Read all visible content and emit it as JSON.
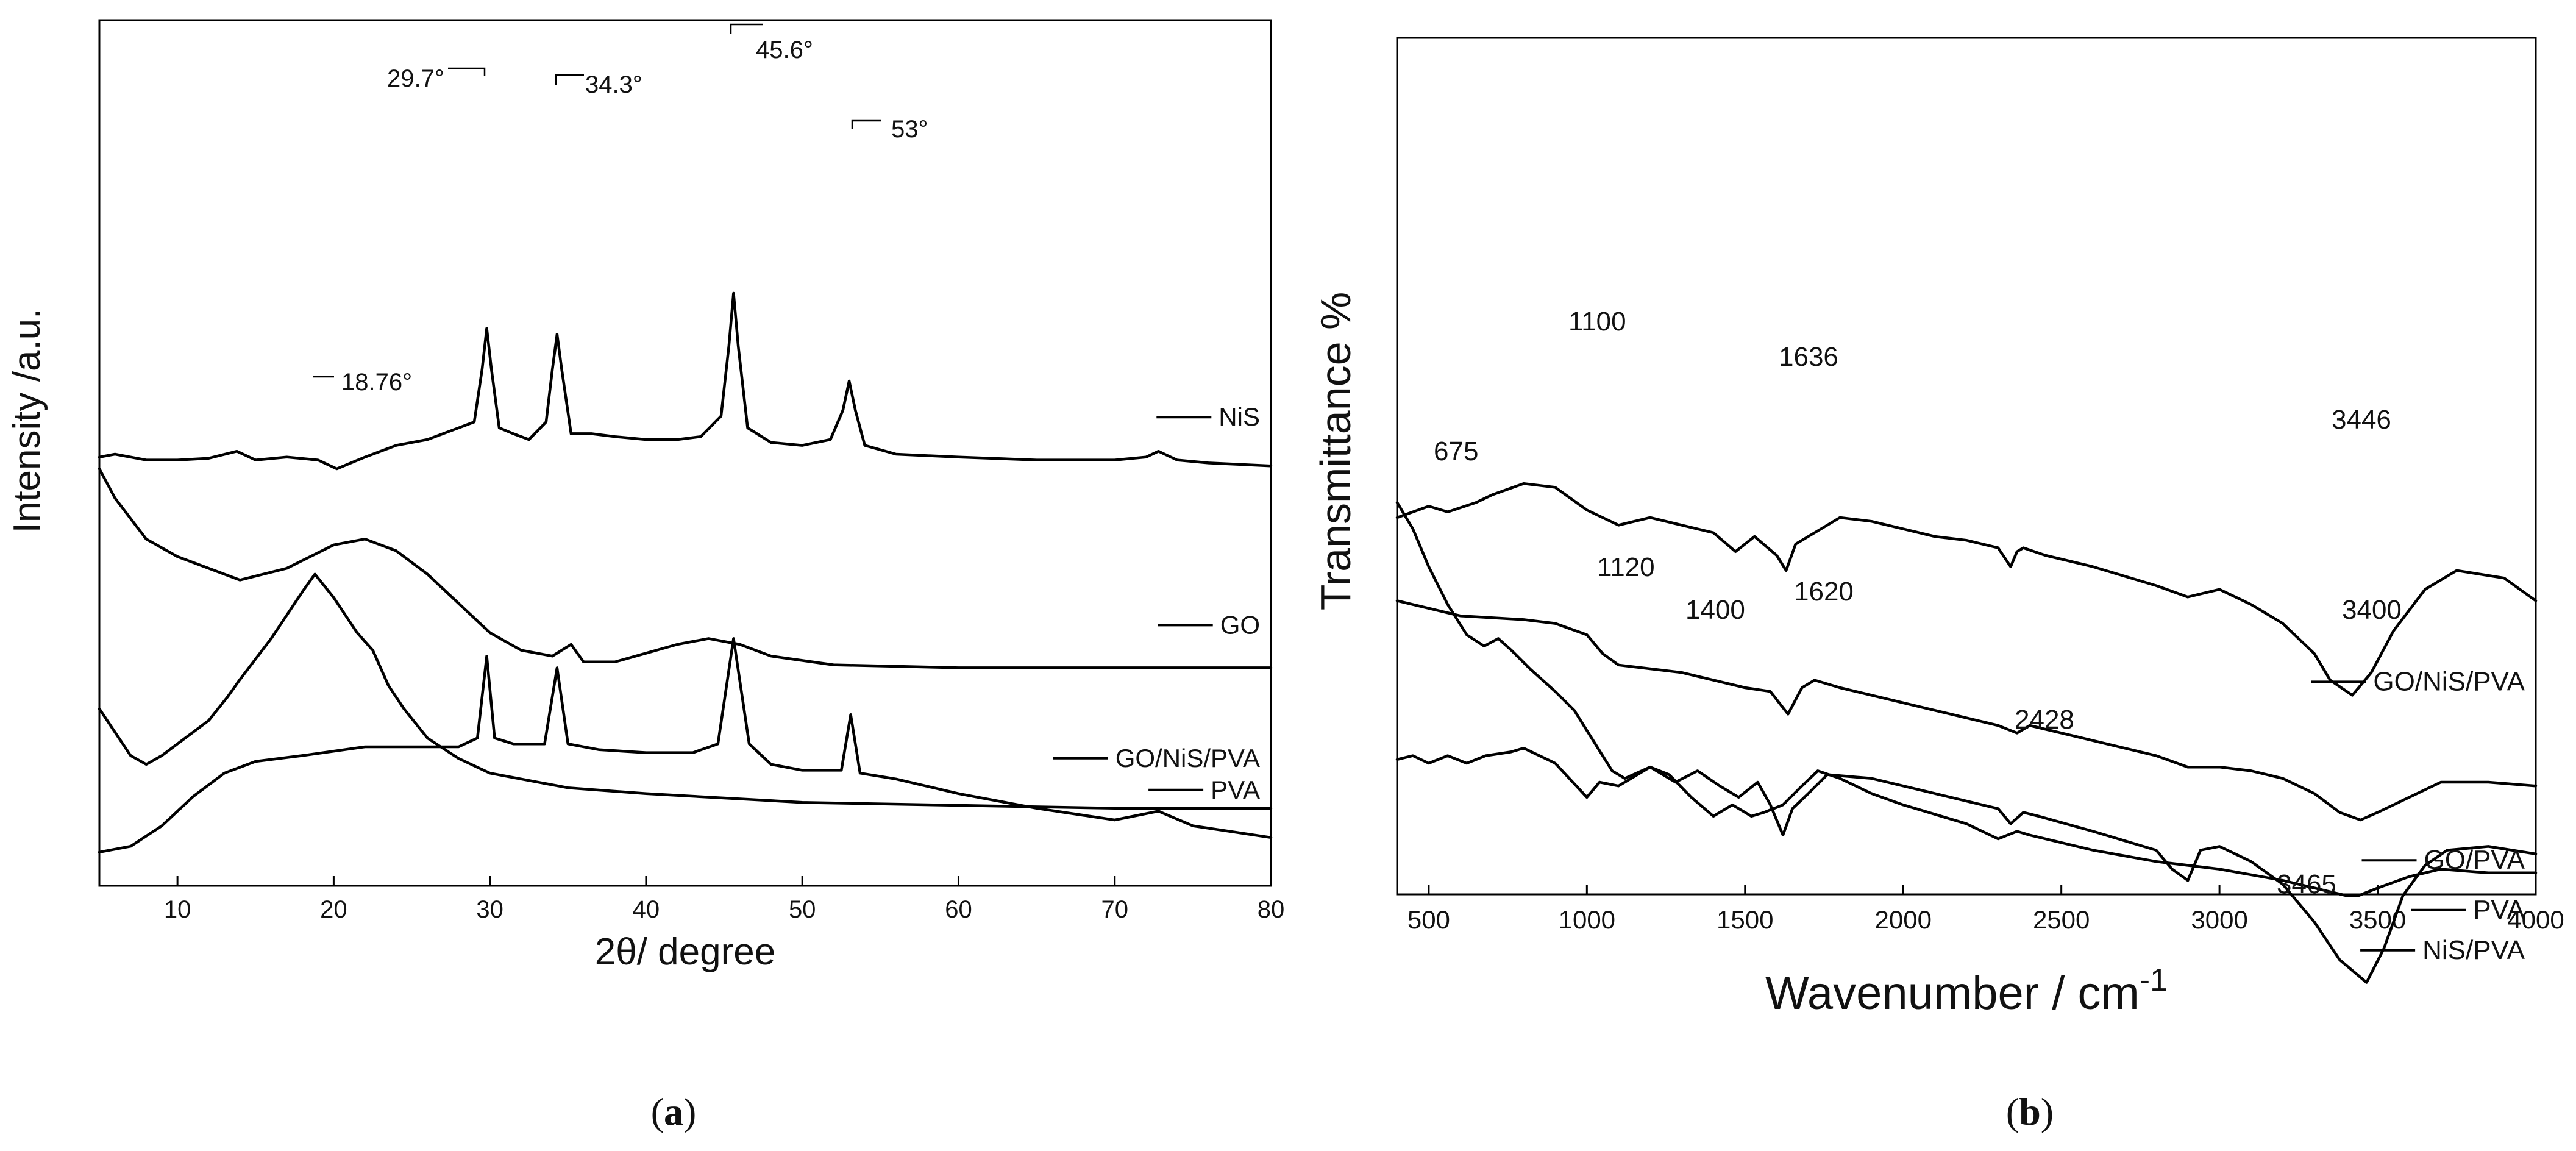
{
  "panels": {
    "a": {
      "caption_open": "(",
      "caption_letter": "a",
      "caption_close": ")"
    },
    "b": {
      "caption_open": "(",
      "caption_letter": "b",
      "caption_close": ")"
    }
  },
  "chart_data": [
    {
      "id": "a",
      "type": "line",
      "title": "",
      "xlabel": "2θ/ degree",
      "ylabel": "Intensity /a.u.",
      "xlim": [
        5,
        80
      ],
      "xticks": [
        10,
        20,
        30,
        40,
        50,
        60,
        70,
        80
      ],
      "yticks_labeled": false,
      "legend_position": "right, one label per trace",
      "series": [
        {
          "name": "NiS",
          "offset": 6.6,
          "x": [
            5,
            6,
            8,
            10,
            12,
            13.8,
            15,
            17,
            19,
            20.2,
            22,
            24,
            26,
            28,
            29,
            29.5,
            29.8,
            30.1,
            30.6,
            31.5,
            32.5,
            33.6,
            34,
            34.3,
            34.6,
            35.2,
            36.5,
            38,
            40,
            42,
            43.5,
            44.8,
            45.3,
            45.6,
            45.9,
            46.5,
            48,
            50,
            51.8,
            52.6,
            53,
            53.4,
            54,
            56,
            60,
            65,
            70,
            72,
            72.8,
            74,
            76,
            80
          ],
          "values": [
            0.1,
            0.15,
            0.05,
            0.05,
            0.08,
            0.2,
            0.05,
            0.1,
            0.05,
            -0.1,
            0.1,
            0.3,
            0.4,
            0.6,
            0.7,
            1.6,
            2.3,
            1.6,
            0.6,
            0.5,
            0.4,
            0.7,
            1.6,
            2.2,
            1.6,
            0.5,
            0.5,
            0.45,
            0.4,
            0.4,
            0.45,
            0.8,
            2.0,
            2.9,
            2.0,
            0.6,
            0.35,
            0.3,
            0.4,
            0.9,
            1.4,
            0.9,
            0.3,
            0.15,
            0.1,
            0.05,
            0.05,
            0.1,
            0.2,
            0.05,
            0.0,
            -0.05
          ]
        },
        {
          "name": "GO",
          "offset": 3.1,
          "x": [
            5,
            6,
            8,
            10,
            14,
            17,
            20,
            22,
            24,
            26,
            28,
            30,
            32,
            34,
            35.2,
            36,
            38,
            40,
            42,
            44,
            46,
            48,
            52,
            60,
            70,
            80
          ],
          "values": [
            3.4,
            2.9,
            2.2,
            1.9,
            1.5,
            1.7,
            2.1,
            2.2,
            2.0,
            1.6,
            1.1,
            0.6,
            0.3,
            0.2,
            0.4,
            0.1,
            0.1,
            0.25,
            0.4,
            0.5,
            0.4,
            0.2,
            0.05,
            0.0,
            0.0,
            0.0
          ]
        },
        {
          "name": "PVA",
          "offset": 0.7,
          "x": [
            5,
            6,
            7,
            8,
            9,
            10,
            12,
            13.2,
            14,
            16,
            18,
            18.8,
            20,
            21.5,
            22.5,
            23.5,
            24.5,
            26,
            28,
            30,
            35,
            40,
            50,
            60,
            70,
            80
          ],
          "values": [
            1.7,
            1.3,
            0.9,
            0.75,
            0.9,
            1.1,
            1.5,
            1.9,
            2.2,
            2.9,
            3.7,
            4.0,
            3.6,
            3.0,
            2.7,
            2.1,
            1.7,
            1.2,
            0.85,
            0.6,
            0.35,
            0.25,
            0.1,
            0.05,
            0.0,
            0.0
          ]
        },
        {
          "name": "GO/NiS/PVA",
          "offset": -0.1,
          "x": [
            5,
            7,
            9,
            11,
            13,
            15,
            18,
            22,
            26,
            28,
            29.2,
            29.8,
            30.3,
            31.5,
            33.5,
            34.3,
            35,
            37,
            40,
            43,
            44.6,
            45.6,
            46.6,
            48,
            50,
            52.5,
            53.1,
            53.7,
            56,
            60,
            65,
            70,
            72.8,
            75,
            80
          ],
          "values": [
            0.05,
            0.15,
            0.5,
            1.0,
            1.4,
            1.6,
            1.7,
            1.85,
            1.85,
            1.85,
            2.0,
            3.4,
            2.0,
            1.9,
            1.9,
            3.2,
            1.9,
            1.8,
            1.75,
            1.75,
            1.9,
            3.7,
            1.9,
            1.55,
            1.45,
            1.45,
            2.4,
            1.4,
            1.3,
            1.05,
            0.8,
            0.6,
            0.75,
            0.5,
            0.3
          ]
        }
      ],
      "annotations": [
        "29.7°",
        "34.3°",
        "45.6°",
        "53°",
        "18.76°"
      ]
    },
    {
      "id": "b",
      "type": "line",
      "title": "",
      "xlabel": "Wavenumber / cm",
      "xlabel_superscript": "-1",
      "ylabel": "Transmittance %",
      "xlim": [
        400,
        4000
      ],
      "xticks": [
        500,
        1000,
        1500,
        2000,
        2500,
        3000,
        3500,
        4000
      ],
      "yticks_labeled": false,
      "legend_position": "right, one label per trace",
      "series": [
        {
          "name": "GO/NiS/PVA",
          "offset": 9.0,
          "x": [
            400,
            500,
            560,
            650,
            700,
            800,
            900,
            1000,
            1100,
            1200,
            1300,
            1400,
            1470,
            1530,
            1600,
            1630,
            1660,
            1700,
            1800,
            1900,
            2000,
            2100,
            2200,
            2300,
            2340,
            2360,
            2380,
            2450,
            2600,
            2800,
            2900,
            3000,
            3100,
            3200,
            3300,
            3350,
            3420,
            3480,
            3550,
            3650,
            3750,
            3900,
            4000
          ],
          "values": [
            0.0,
            0.3,
            0.15,
            0.4,
            0.6,
            0.9,
            0.8,
            0.2,
            -0.2,
            0.0,
            -0.2,
            -0.4,
            -0.9,
            -0.5,
            -1.0,
            -1.4,
            -0.7,
            -0.5,
            0.0,
            -0.1,
            -0.3,
            -0.5,
            -0.6,
            -0.8,
            -1.3,
            -0.9,
            -0.8,
            -1.0,
            -1.3,
            -1.8,
            -2.1,
            -1.9,
            -2.3,
            -2.8,
            -3.6,
            -4.3,
            -4.7,
            -4.1,
            -3.0,
            -1.9,
            -1.4,
            -1.6,
            -2.2
          ]
        },
        {
          "name": "GO/PVA",
          "offset": 6.8,
          "x": [
            400,
            600,
            800,
            900,
            1000,
            1050,
            1100,
            1200,
            1300,
            1400,
            1500,
            1580,
            1636,
            1680,
            1720,
            1800,
            2000,
            2200,
            2300,
            2360,
            2400,
            2600,
            2800,
            2900,
            3000,
            3100,
            3200,
            3300,
            3380,
            3446,
            3500,
            3600,
            3700,
            3850,
            4000
          ],
          "values": [
            0.0,
            -0.4,
            -0.5,
            -0.6,
            -0.9,
            -1.4,
            -1.7,
            -1.8,
            -1.9,
            -2.1,
            -2.3,
            -2.4,
            -3.0,
            -2.3,
            -2.1,
            -2.3,
            -2.7,
            -3.1,
            -3.3,
            -3.5,
            -3.3,
            -3.7,
            -4.1,
            -4.4,
            -4.4,
            -4.5,
            -4.7,
            -5.1,
            -5.6,
            -5.8,
            -5.6,
            -5.2,
            -4.8,
            -4.8,
            -4.9
          ]
        },
        {
          "name": "NiS/PVA",
          "offset": 4.7,
          "x": [
            400,
            450,
            500,
            560,
            620,
            675,
            720,
            760,
            820,
            900,
            960,
            1020,
            1080,
            1120,
            1200,
            1260,
            1330,
            1400,
            1460,
            1520,
            1560,
            1620,
            1680,
            1730,
            1800,
            1900,
            2000,
            2200,
            2300,
            2360,
            2400,
            2600,
            2800,
            3000,
            3200,
            3300,
            3400,
            3440,
            3500,
            3600,
            3700,
            3850,
            4000
          ],
          "values": [
            4.7,
            4.0,
            3.0,
            2.0,
            1.2,
            0.9,
            1.1,
            0.8,
            0.3,
            -0.3,
            -0.8,
            -1.6,
            -2.4,
            -2.6,
            -2.3,
            -2.5,
            -3.1,
            -3.6,
            -3.3,
            -3.6,
            -3.5,
            -3.3,
            -2.8,
            -2.4,
            -2.6,
            -3.0,
            -3.3,
            -3.8,
            -4.2,
            -4.0,
            -4.1,
            -4.5,
            -4.8,
            -5.0,
            -5.3,
            -5.5,
            -5.7,
            -5.7,
            -5.5,
            -5.2,
            -5.0,
            -5.1,
            -5.1
          ]
        },
        {
          "name": "PVA",
          "offset": 2.6,
          "x": [
            400,
            450,
            500,
            560,
            620,
            680,
            760,
            800,
            900,
            1000,
            1040,
            1100,
            1200,
            1280,
            1350,
            1420,
            1480,
            1540,
            1580,
            1620,
            1650,
            1700,
            1760,
            1900,
            2100,
            2300,
            2340,
            2380,
            2428,
            2600,
            2800,
            2850,
            2900,
            2940,
            3000,
            3100,
            3200,
            3300,
            3380,
            3465,
            3520,
            3580,
            3650,
            3720,
            3850,
            4000
          ],
          "values": [
            0.0,
            0.1,
            -0.1,
            0.1,
            -0.1,
            0.1,
            0.2,
            0.3,
            -0.1,
            -1.0,
            -0.6,
            -0.7,
            -0.2,
            -0.6,
            -0.3,
            -0.7,
            -1.0,
            -0.6,
            -1.2,
            -2.0,
            -1.3,
            -0.9,
            -0.4,
            -0.5,
            -0.9,
            -1.3,
            -1.7,
            -1.4,
            -1.5,
            -1.9,
            -2.4,
            -2.9,
            -3.2,
            -2.4,
            -2.3,
            -2.7,
            -3.3,
            -4.3,
            -5.3,
            -5.9,
            -5.0,
            -3.6,
            -2.8,
            -2.4,
            -2.3,
            -2.5
          ]
        }
      ],
      "annotations": [
        "1100",
        "1636",
        "3446",
        "675",
        "1120",
        "1400",
        "1620",
        "3400",
        "2428",
        "3465"
      ]
    }
  ]
}
